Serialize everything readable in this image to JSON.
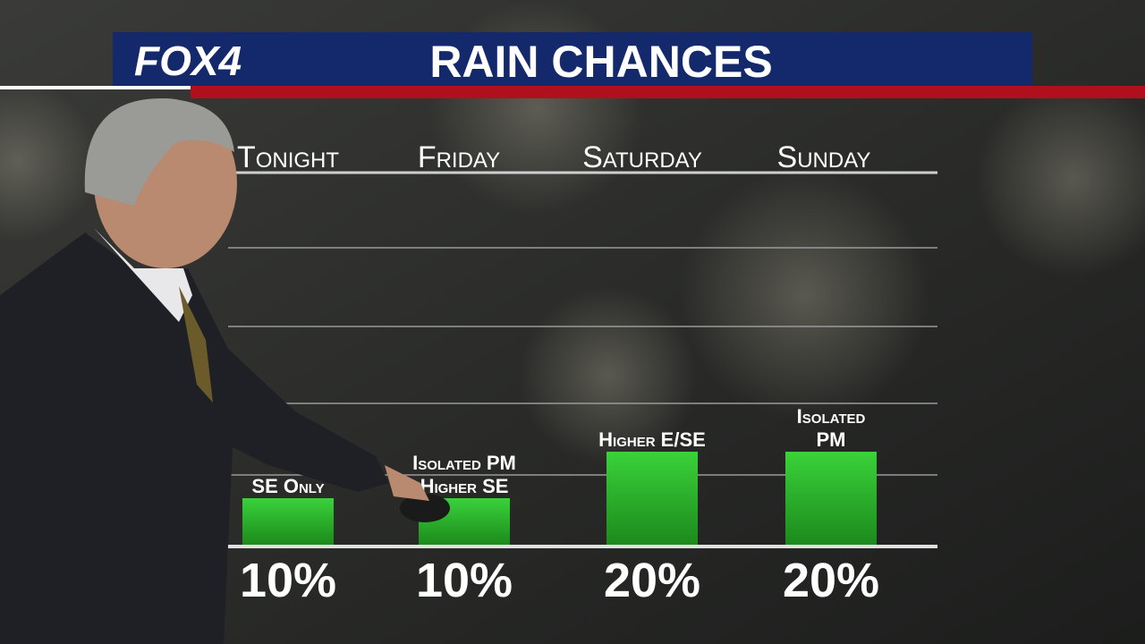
{
  "brand": "FOX4",
  "chart_data": {
    "type": "bar",
    "title": "RAIN CHANCES",
    "categories": [
      "Tonight",
      "Friday",
      "Saturday",
      "Sunday"
    ],
    "values": [
      10,
      10,
      20,
      20
    ],
    "value_labels": [
      "10%",
      "10%",
      "20%",
      "20%"
    ],
    "annotations": [
      [
        "SE Only"
      ],
      [
        "Isolated PM",
        "Higher SE"
      ],
      [
        "Higher E/SE"
      ],
      [
        "Isolated",
        "PM"
      ]
    ],
    "color": "#2fbf2f",
    "ylim": [
      0,
      80
    ]
  }
}
